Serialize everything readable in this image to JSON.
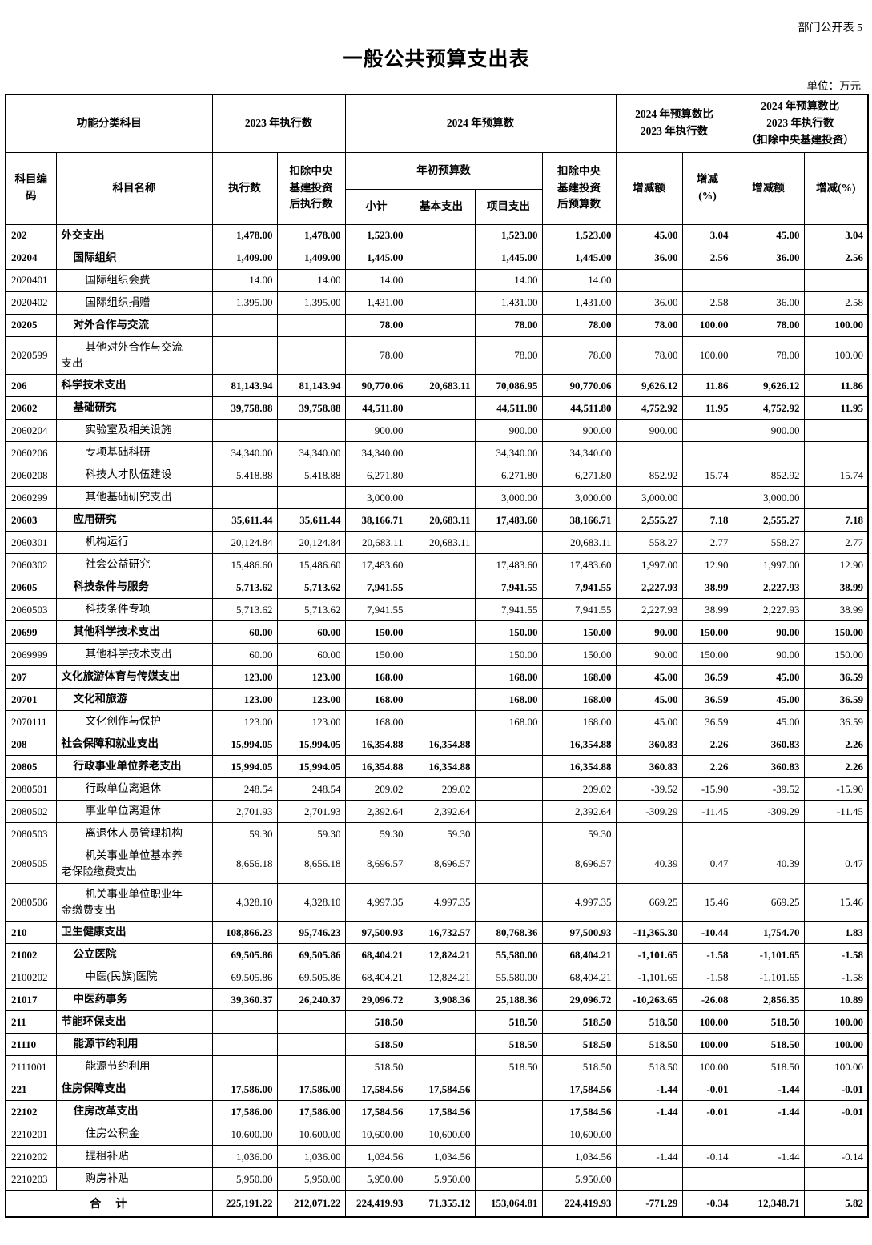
{
  "page": {
    "doc_label": "部门公开表 5",
    "title": "一般公共预算支出表",
    "unit_note": "单位：万元"
  },
  "table": {
    "header": {
      "func_class": "功能分类科目",
      "exec_2023": "2023 年执行数",
      "budget_2024": "2024 年预算数",
      "cmp": "2024 年预算数比\n2023 年执行数",
      "cmp_ex": "2024 年预算数比\n2023 年执行数\n（扣除中央基建投资）",
      "code_label": "科目编\n码",
      "name_label": "科目名称",
      "exec_label": "执行数",
      "exec_ex_label": "扣除中央\n基建投资\n后执行数",
      "init_budget_label": "年初预算数",
      "subtotal_label": "小计",
      "basic_label": "基本支出",
      "project_label": "项目支出",
      "budget_ex_label": "扣除中央\n基建投资\n后预算数",
      "delta_label": "增减额",
      "delta_pct_label": "增减\n(%)",
      "delta2_label": "增减额",
      "delta_pct2_label": "增减(%)"
    },
    "rows": [
      {
        "code": "202",
        "name": "外交支出",
        "indent": 0,
        "bold": true,
        "values": [
          "1,478.00",
          "1,478.00",
          "1,523.00",
          "",
          "1,523.00",
          "1,523.00",
          "45.00",
          "3.04",
          "45.00",
          "3.04"
        ]
      },
      {
        "code": "20204",
        "name": "国际组织",
        "indent": 1,
        "bold": true,
        "values": [
          "1,409.00",
          "1,409.00",
          "1,445.00",
          "",
          "1,445.00",
          "1,445.00",
          "36.00",
          "2.56",
          "36.00",
          "2.56"
        ]
      },
      {
        "code": "2020401",
        "name": "国际组织会费",
        "indent": 2,
        "bold": false,
        "values": [
          "14.00",
          "14.00",
          "14.00",
          "",
          "14.00",
          "14.00",
          "",
          "",
          "",
          ""
        ]
      },
      {
        "code": "2020402",
        "name": "国际组织捐赠",
        "indent": 2,
        "bold": false,
        "values": [
          "1,395.00",
          "1,395.00",
          "1,431.00",
          "",
          "1,431.00",
          "1,431.00",
          "36.00",
          "2.58",
          "36.00",
          "2.58"
        ]
      },
      {
        "code": "20205",
        "name": "对外合作与交流",
        "indent": 1,
        "bold": true,
        "values": [
          "",
          "",
          "78.00",
          "",
          "78.00",
          "78.00",
          "78.00",
          "100.00",
          "78.00",
          "100.00"
        ]
      },
      {
        "code": "2020599",
        "name": "其他对外合作与交流\n支出",
        "indent": 2,
        "bold": false,
        "values": [
          "",
          "",
          "78.00",
          "",
          "78.00",
          "78.00",
          "78.00",
          "100.00",
          "78.00",
          "100.00"
        ]
      },
      {
        "code": "206",
        "name": "科学技术支出",
        "indent": 0,
        "bold": true,
        "values": [
          "81,143.94",
          "81,143.94",
          "90,770.06",
          "20,683.11",
          "70,086.95",
          "90,770.06",
          "9,626.12",
          "11.86",
          "9,626.12",
          "11.86"
        ]
      },
      {
        "code": "20602",
        "name": "基础研究",
        "indent": 1,
        "bold": true,
        "values": [
          "39,758.88",
          "39,758.88",
          "44,511.80",
          "",
          "44,511.80",
          "44,511.80",
          "4,752.92",
          "11.95",
          "4,752.92",
          "11.95"
        ]
      },
      {
        "code": "2060204",
        "name": "实验室及相关设施",
        "indent": 2,
        "bold": false,
        "values": [
          "",
          "",
          "900.00",
          "",
          "900.00",
          "900.00",
          "900.00",
          "",
          "900.00",
          ""
        ]
      },
      {
        "code": "2060206",
        "name": "专项基础科研",
        "indent": 2,
        "bold": false,
        "values": [
          "34,340.00",
          "34,340.00",
          "34,340.00",
          "",
          "34,340.00",
          "34,340.00",
          "",
          "",
          "",
          ""
        ]
      },
      {
        "code": "2060208",
        "name": "科技人才队伍建设",
        "indent": 2,
        "bold": false,
        "values": [
          "5,418.88",
          "5,418.88",
          "6,271.80",
          "",
          "6,271.80",
          "6,271.80",
          "852.92",
          "15.74",
          "852.92",
          "15.74"
        ]
      },
      {
        "code": "2060299",
        "name": "其他基础研究支出",
        "indent": 2,
        "bold": false,
        "values": [
          "",
          "",
          "3,000.00",
          "",
          "3,000.00",
          "3,000.00",
          "3,000.00",
          "",
          "3,000.00",
          ""
        ]
      },
      {
        "code": "20603",
        "name": "应用研究",
        "indent": 1,
        "bold": true,
        "values": [
          "35,611.44",
          "35,611.44",
          "38,166.71",
          "20,683.11",
          "17,483.60",
          "38,166.71",
          "2,555.27",
          "7.18",
          "2,555.27",
          "7.18"
        ]
      },
      {
        "code": "2060301",
        "name": "机构运行",
        "indent": 2,
        "bold": false,
        "values": [
          "20,124.84",
          "20,124.84",
          "20,683.11",
          "20,683.11",
          "",
          "20,683.11",
          "558.27",
          "2.77",
          "558.27",
          "2.77"
        ]
      },
      {
        "code": "2060302",
        "name": "社会公益研究",
        "indent": 2,
        "bold": false,
        "values": [
          "15,486.60",
          "15,486.60",
          "17,483.60",
          "",
          "17,483.60",
          "17,483.60",
          "1,997.00",
          "12.90",
          "1,997.00",
          "12.90"
        ]
      },
      {
        "code": "20605",
        "name": "科技条件与服务",
        "indent": 1,
        "bold": true,
        "values": [
          "5,713.62",
          "5,713.62",
          "7,941.55",
          "",
          "7,941.55",
          "7,941.55",
          "2,227.93",
          "38.99",
          "2,227.93",
          "38.99"
        ]
      },
      {
        "code": "2060503",
        "name": "科技条件专项",
        "indent": 2,
        "bold": false,
        "values": [
          "5,713.62",
          "5,713.62",
          "7,941.55",
          "",
          "7,941.55",
          "7,941.55",
          "2,227.93",
          "38.99",
          "2,227.93",
          "38.99"
        ]
      },
      {
        "code": "20699",
        "name": "其他科学技术支出",
        "indent": 1,
        "bold": true,
        "values": [
          "60.00",
          "60.00",
          "150.00",
          "",
          "150.00",
          "150.00",
          "90.00",
          "150.00",
          "90.00",
          "150.00"
        ]
      },
      {
        "code": "2069999",
        "name": "其他科学技术支出",
        "indent": 2,
        "bold": false,
        "values": [
          "60.00",
          "60.00",
          "150.00",
          "",
          "150.00",
          "150.00",
          "90.00",
          "150.00",
          "90.00",
          "150.00"
        ]
      },
      {
        "code": "207",
        "name": "文化旅游体育与传媒支出",
        "indent": 0,
        "bold": true,
        "values": [
          "123.00",
          "123.00",
          "168.00",
          "",
          "168.00",
          "168.00",
          "45.00",
          "36.59",
          "45.00",
          "36.59"
        ]
      },
      {
        "code": "20701",
        "name": "文化和旅游",
        "indent": 1,
        "bold": true,
        "values": [
          "123.00",
          "123.00",
          "168.00",
          "",
          "168.00",
          "168.00",
          "45.00",
          "36.59",
          "45.00",
          "36.59"
        ]
      },
      {
        "code": "2070111",
        "name": "文化创作与保护",
        "indent": 2,
        "bold": false,
        "values": [
          "123.00",
          "123.00",
          "168.00",
          "",
          "168.00",
          "168.00",
          "45.00",
          "36.59",
          "45.00",
          "36.59"
        ]
      },
      {
        "code": "208",
        "name": "社会保障和就业支出",
        "indent": 0,
        "bold": true,
        "values": [
          "15,994.05",
          "15,994.05",
          "16,354.88",
          "16,354.88",
          "",
          "16,354.88",
          "360.83",
          "2.26",
          "360.83",
          "2.26"
        ]
      },
      {
        "code": "20805",
        "name": "行政事业单位养老支出",
        "indent": 1,
        "bold": true,
        "values": [
          "15,994.05",
          "15,994.05",
          "16,354.88",
          "16,354.88",
          "",
          "16,354.88",
          "360.83",
          "2.26",
          "360.83",
          "2.26"
        ]
      },
      {
        "code": "2080501",
        "name": "行政单位离退休",
        "indent": 2,
        "bold": false,
        "values": [
          "248.54",
          "248.54",
          "209.02",
          "209.02",
          "",
          "209.02",
          "-39.52",
          "-15.90",
          "-39.52",
          "-15.90"
        ]
      },
      {
        "code": "2080502",
        "name": "事业单位离退休",
        "indent": 2,
        "bold": false,
        "values": [
          "2,701.93",
          "2,701.93",
          "2,392.64",
          "2,392.64",
          "",
          "2,392.64",
          "-309.29",
          "-11.45",
          "-309.29",
          "-11.45"
        ]
      },
      {
        "code": "2080503",
        "name": "离退休人员管理机构",
        "indent": 2,
        "bold": false,
        "values": [
          "59.30",
          "59.30",
          "59.30",
          "59.30",
          "",
          "59.30",
          "",
          "",
          "",
          ""
        ]
      },
      {
        "code": "2080505",
        "name": "机关事业单位基本养\n老保险缴费支出",
        "indent": 2,
        "bold": false,
        "values": [
          "8,656.18",
          "8,656.18",
          "8,696.57",
          "8,696.57",
          "",
          "8,696.57",
          "40.39",
          "0.47",
          "40.39",
          "0.47"
        ]
      },
      {
        "code": "2080506",
        "name": "机关事业单位职业年\n金缴费支出",
        "indent": 2,
        "bold": false,
        "values": [
          "4,328.10",
          "4,328.10",
          "4,997.35",
          "4,997.35",
          "",
          "4,997.35",
          "669.25",
          "15.46",
          "669.25",
          "15.46"
        ]
      },
      {
        "code": "210",
        "name": "卫生健康支出",
        "indent": 0,
        "bold": true,
        "values": [
          "108,866.23",
          "95,746.23",
          "97,500.93",
          "16,732.57",
          "80,768.36",
          "97,500.93",
          "-11,365.30",
          "-10.44",
          "1,754.70",
          "1.83"
        ]
      },
      {
        "code": "21002",
        "name": "公立医院",
        "indent": 1,
        "bold": true,
        "values": [
          "69,505.86",
          "69,505.86",
          "68,404.21",
          "12,824.21",
          "55,580.00",
          "68,404.21",
          "-1,101.65",
          "-1.58",
          "-1,101.65",
          "-1.58"
        ]
      },
      {
        "code": "2100202",
        "name": "中医(民族)医院",
        "indent": 2,
        "bold": false,
        "values": [
          "69,505.86",
          "69,505.86",
          "68,404.21",
          "12,824.21",
          "55,580.00",
          "68,404.21",
          "-1,101.65",
          "-1.58",
          "-1,101.65",
          "-1.58"
        ]
      },
      {
        "code": "21017",
        "name": "中医药事务",
        "indent": 1,
        "bold": true,
        "values": [
          "39,360.37",
          "26,240.37",
          "29,096.72",
          "3,908.36",
          "25,188.36",
          "29,096.72",
          "-10,263.65",
          "-26.08",
          "2,856.35",
          "10.89"
        ]
      },
      {
        "code": "211",
        "name": "节能环保支出",
        "indent": 0,
        "bold": true,
        "values": [
          "",
          "",
          "518.50",
          "",
          "518.50",
          "518.50",
          "518.50",
          "100.00",
          "518.50",
          "100.00"
        ]
      },
      {
        "code": "21110",
        "name": "能源节约利用",
        "indent": 1,
        "bold": true,
        "values": [
          "",
          "",
          "518.50",
          "",
          "518.50",
          "518.50",
          "518.50",
          "100.00",
          "518.50",
          "100.00"
        ]
      },
      {
        "code": "2111001",
        "name": "能源节约利用",
        "indent": 2,
        "bold": false,
        "values": [
          "",
          "",
          "518.50",
          "",
          "518.50",
          "518.50",
          "518.50",
          "100.00",
          "518.50",
          "100.00"
        ]
      },
      {
        "code": "221",
        "name": "住房保障支出",
        "indent": 0,
        "bold": true,
        "values": [
          "17,586.00",
          "17,586.00",
          "17,584.56",
          "17,584.56",
          "",
          "17,584.56",
          "-1.44",
          "-0.01",
          "-1.44",
          "-0.01"
        ]
      },
      {
        "code": "22102",
        "name": "住房改革支出",
        "indent": 1,
        "bold": true,
        "values": [
          "17,586.00",
          "17,586.00",
          "17,584.56",
          "17,584.56",
          "",
          "17,584.56",
          "-1.44",
          "-0.01",
          "-1.44",
          "-0.01"
        ]
      },
      {
        "code": "2210201",
        "name": "住房公积金",
        "indent": 2,
        "bold": false,
        "values": [
          "10,600.00",
          "10,600.00",
          "10,600.00",
          "10,600.00",
          "",
          "10,600.00",
          "",
          "",
          "",
          ""
        ]
      },
      {
        "code": "2210202",
        "name": "提租补贴",
        "indent": 2,
        "bold": false,
        "values": [
          "1,036.00",
          "1,036.00",
          "1,034.56",
          "1,034.56",
          "",
          "1,034.56",
          "-1.44",
          "-0.14",
          "-1.44",
          "-0.14"
        ]
      },
      {
        "code": "2210203",
        "name": "购房补贴",
        "indent": 2,
        "bold": false,
        "values": [
          "5,950.00",
          "5,950.00",
          "5,950.00",
          "5,950.00",
          "",
          "5,950.00",
          "",
          "",
          "",
          ""
        ]
      }
    ],
    "total_row": {
      "label": "合　计",
      "values": [
        "225,191.22",
        "212,071.22",
        "224,419.93",
        "71,355.12",
        "153,064.81",
        "224,419.93",
        "-771.29",
        "-0.34",
        "12,348.71",
        "5.82"
      ]
    }
  }
}
